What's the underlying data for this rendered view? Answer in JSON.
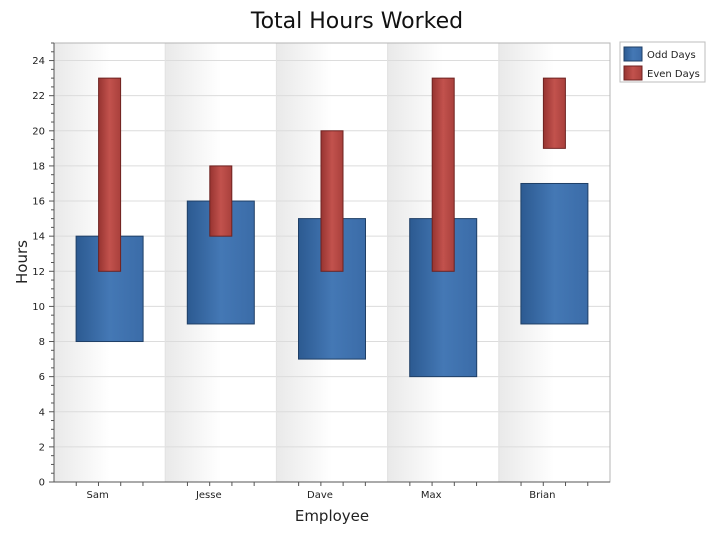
{
  "chart_data": {
    "type": "bar",
    "subtype": "floating-range",
    "title": "Total Hours Worked",
    "xlabel": "Employee",
    "ylabel": "Hours",
    "categories": [
      "Sam",
      "Jesse",
      "Dave",
      "Max",
      "Brian"
    ],
    "ylim": [
      0,
      25
    ],
    "yticks": [
      0,
      2,
      4,
      6,
      8,
      10,
      12,
      14,
      16,
      18,
      20,
      22,
      24
    ],
    "grid": true,
    "legend": "top-right",
    "series": [
      {
        "name": "Odd Days",
        "color": "#3a6ba5",
        "ranges": [
          [
            8,
            14
          ],
          [
            9,
            16
          ],
          [
            7,
            15
          ],
          [
            6,
            15
          ],
          [
            9,
            17
          ]
        ]
      },
      {
        "name": "Even Days",
        "color": "#b04642",
        "ranges": [
          [
            12,
            23
          ],
          [
            14,
            18
          ],
          [
            12,
            20
          ],
          [
            12,
            23
          ],
          [
            19,
            23
          ]
        ]
      }
    ]
  }
}
